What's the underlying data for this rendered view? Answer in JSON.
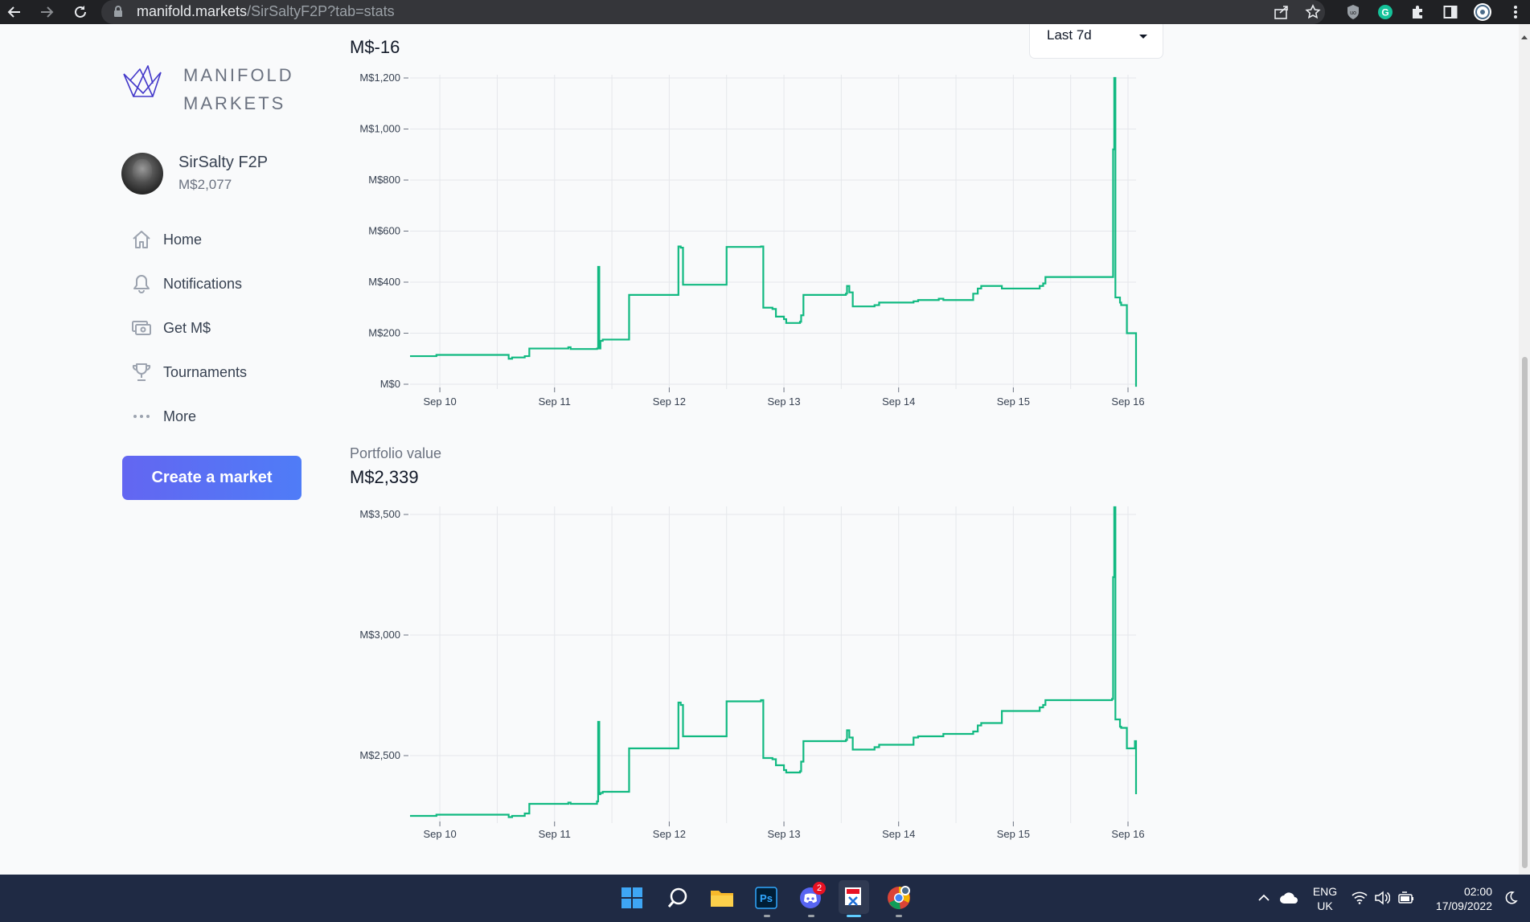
{
  "browser": {
    "url_host": "manifold.markets",
    "url_path": "/SirSaltyF2P?tab=stats",
    "icons": [
      "back-icon",
      "forward-icon",
      "reload-icon",
      "lock-icon",
      "share-icon",
      "star-icon",
      "shield-icon",
      "grammarly-icon",
      "puzzle-icon",
      "sidepanel-icon",
      "profile-icon",
      "menu-icon"
    ]
  },
  "sidebar": {
    "logo_line1": "MANIFOLD",
    "logo_line2": "MARKETS",
    "user_name": "SirSalty F2P",
    "user_balance": "M$2,077",
    "nav": [
      {
        "label": "Home",
        "icon": "home-icon"
      },
      {
        "label": "Notifications",
        "icon": "bell-icon"
      },
      {
        "label": "Get M$",
        "icon": "cash-icon"
      },
      {
        "label": "Tournaments",
        "icon": "trophy-icon"
      },
      {
        "label": "More",
        "icon": "dots-icon"
      }
    ],
    "create_label": "Create a market"
  },
  "main": {
    "profit_value": "M$-16",
    "period_select": "Last 7d",
    "portfolio_label": "Portfolio value",
    "portfolio_value": "M$2,339"
  },
  "colors": {
    "line": "#11b981",
    "accent": "#6366f1",
    "grid": "#e5e7eb"
  },
  "chart_data": [
    {
      "type": "line",
      "title": "",
      "xlabel": "",
      "ylabel": "",
      "x_ticks": [
        "Sep 10",
        "Sep 11",
        "Sep 12",
        "Sep 13",
        "Sep 14",
        "Sep 15",
        "Sep 16"
      ],
      "y_ticks": [
        "M$0",
        "M$200",
        "M$400",
        "M$600",
        "M$800",
        "M$1,000",
        "M$1,200"
      ],
      "ylim": [
        0,
        1200
      ],
      "xlim": [
        9.74,
        16.07
      ],
      "grid": true,
      "step": true,
      "series": [
        {
          "x": [
            9.74,
            9.97,
            10.6,
            10.63,
            10.74,
            10.78,
            11.12,
            11.14,
            11.37,
            11.38,
            11.39,
            11.4,
            11.42,
            11.65,
            12.08,
            12.1,
            12.12,
            12.5,
            12.8,
            12.82,
            12.9,
            12.93,
            13.0,
            13.02,
            13.14,
            13.15,
            13.17,
            13.54,
            13.55,
            13.57,
            13.6,
            13.79,
            13.83,
            14.13,
            14.17,
            14.35,
            14.39,
            14.65,
            14.69,
            14.72,
            14.9,
            15.23,
            15.26,
            15.28,
            15.86,
            15.87,
            15.88,
            15.89,
            15.93,
            15.94,
            15.99,
            16.06,
            16.07
          ],
          "y": [
            110,
            115,
            100,
            105,
            110,
            140,
            145,
            138,
            140,
            460,
            140,
            170,
            175,
            350,
            540,
            535,
            390,
            538,
            540,
            300,
            295,
            265,
            255,
            240,
            245,
            270,
            350,
            355,
            385,
            360,
            305,
            310,
            320,
            325,
            330,
            335,
            330,
            355,
            375,
            385,
            375,
            385,
            395,
            420,
            420,
            920,
            1200,
            340,
            320,
            310,
            200,
            200,
            -10
          ]
        }
      ]
    },
    {
      "type": "line",
      "title": "",
      "xlabel": "",
      "ylabel": "",
      "x_ticks": [
        "Sep 10",
        "Sep 11",
        "Sep 12",
        "Sep 13",
        "Sep 14",
        "Sep 15",
        "Sep 16"
      ],
      "y_ticks": [
        "M$2,500",
        "M$3,000",
        "M$3,500"
      ],
      "ylim": [
        2240,
        3520
      ],
      "xlim": [
        9.74,
        16.07
      ],
      "grid": true,
      "step": true,
      "series": [
        {
          "x": [
            9.74,
            9.97,
            10.6,
            10.63,
            10.74,
            10.78,
            11.12,
            11.14,
            11.37,
            11.38,
            11.39,
            11.4,
            11.42,
            11.65,
            12.08,
            12.1,
            12.12,
            12.5,
            12.8,
            12.82,
            12.9,
            12.93,
            13.0,
            13.02,
            13.14,
            13.15,
            13.17,
            13.54,
            13.55,
            13.57,
            13.6,
            13.79,
            13.83,
            14.13,
            14.17,
            14.35,
            14.39,
            14.65,
            14.69,
            14.72,
            14.9,
            15.23,
            15.26,
            15.28,
            15.86,
            15.87,
            15.88,
            15.89,
            15.93,
            15.94,
            15.99,
            16.06,
            16.07
          ],
          "y": [
            2250,
            2255,
            2245,
            2250,
            2260,
            2300,
            2305,
            2300,
            2310,
            2640,
            2340,
            2345,
            2350,
            2530,
            2720,
            2710,
            2580,
            2725,
            2730,
            2490,
            2485,
            2460,
            2440,
            2430,
            2435,
            2475,
            2560,
            2565,
            2605,
            2575,
            2525,
            2535,
            2545,
            2575,
            2580,
            2580,
            2590,
            2600,
            2625,
            2635,
            2685,
            2700,
            2710,
            2730,
            2735,
            3240,
            3530,
            2650,
            2620,
            2615,
            2530,
            2560,
            2340
          ]
        }
      ]
    }
  ],
  "taskbar": {
    "icons": [
      "windows-start-icon",
      "search-icon",
      "file-explorer-icon",
      "photoshop-icon",
      "discord-icon",
      "snipping-tool-icon",
      "chrome-icon"
    ],
    "discord_badge": "2",
    "lang_line1": "ENG",
    "lang_line2": "UK",
    "time": "02:00",
    "date": "17/09/2022"
  }
}
